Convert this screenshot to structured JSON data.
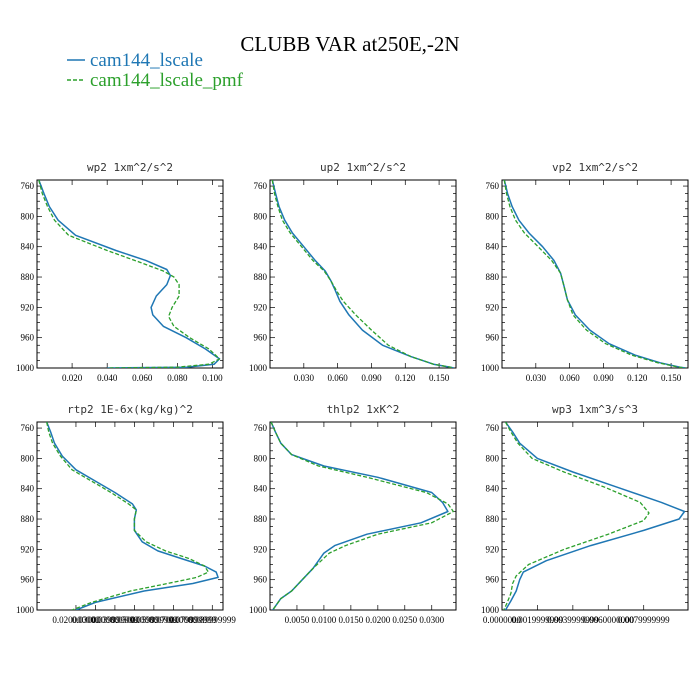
{
  "title": "CLUBB VAR at250E,-2N",
  "legend": [
    {
      "label": "cam144_lscale",
      "color": "#1f77b4",
      "dash": "solid"
    },
    {
      "label": "cam144_lscale_pmf",
      "color": "#2ca02c",
      "dash": "dashed"
    }
  ],
  "chart_data": [
    {
      "type": "line",
      "title": "wp2  1xm^2/s^2",
      "xlim": [
        0.0,
        0.106
      ],
      "ylim": [
        1000,
        752
      ],
      "xticks": [
        0.02,
        0.04,
        0.06,
        0.08,
        0.1
      ],
      "xtick_labels": [
        "0.020",
        "0.040",
        "0.060",
        "0.080",
        "0.100"
      ],
      "yticks": [
        760,
        800,
        840,
        880,
        920,
        960,
        1000
      ],
      "ytick_labels": [
        "760",
        "800",
        "840",
        "880",
        "920",
        "960",
        "1000"
      ],
      "series": [
        {
          "name": "cam144_lscale",
          "x": [
            0.001,
            0.004,
            0.007,
            0.012,
            0.022,
            0.045,
            0.062,
            0.074,
            0.076,
            0.074,
            0.068,
            0.065,
            0.066,
            0.072,
            0.085,
            0.096,
            0.104,
            0.101,
            0.085,
            0.04
          ],
          "y": [
            752,
            770,
            787,
            805,
            825,
            845,
            858,
            870,
            878,
            890,
            905,
            920,
            930,
            945,
            960,
            975,
            988,
            995,
            999,
            1000
          ]
        },
        {
          "name": "cam144_lscale_pmf",
          "x": [
            0.001,
            0.003,
            0.006,
            0.01,
            0.018,
            0.04,
            0.058,
            0.072,
            0.078,
            0.081,
            0.081,
            0.077,
            0.075,
            0.078,
            0.087,
            0.098,
            0.104,
            0.098,
            0.08,
            0.04
          ],
          "y": [
            752,
            770,
            787,
            805,
            825,
            845,
            860,
            872,
            880,
            890,
            905,
            920,
            932,
            945,
            960,
            975,
            988,
            995,
            999,
            1000
          ]
        }
      ]
    },
    {
      "type": "line",
      "title": "up2  1xm^2/s^2",
      "xlim": [
        0.0,
        0.165
      ],
      "ylim": [
        1000,
        752
      ],
      "xticks": [
        0.03,
        0.06,
        0.09,
        0.12,
        0.15
      ],
      "xtick_labels": [
        "0.030",
        "0.060",
        "0.090",
        "0.120",
        "0.150"
      ],
      "yticks": [
        760,
        800,
        840,
        880,
        920,
        960,
        1000
      ],
      "ytick_labels": [
        "760",
        "800",
        "840",
        "880",
        "920",
        "960",
        "1000"
      ],
      "series": [
        {
          "name": "cam144_lscale",
          "x": [
            0.002,
            0.005,
            0.008,
            0.013,
            0.02,
            0.03,
            0.04,
            0.049,
            0.054,
            0.058,
            0.062,
            0.07,
            0.082,
            0.1,
            0.125,
            0.145,
            0.16,
            0.163
          ],
          "y": [
            752,
            770,
            787,
            805,
            822,
            840,
            858,
            872,
            885,
            898,
            912,
            930,
            950,
            970,
            985,
            995,
            999,
            1000
          ]
        },
        {
          "name": "cam144_lscale_pmf",
          "x": [
            0.002,
            0.004,
            0.007,
            0.011,
            0.018,
            0.028,
            0.038,
            0.048,
            0.054,
            0.059,
            0.065,
            0.076,
            0.09,
            0.105,
            0.125,
            0.145,
            0.16,
            0.163
          ],
          "y": [
            752,
            770,
            787,
            805,
            822,
            840,
            858,
            872,
            885,
            898,
            912,
            930,
            950,
            970,
            985,
            995,
            999,
            1000
          ]
        }
      ]
    },
    {
      "type": "line",
      "title": "vp2  1xm^2/s^2",
      "xlim": [
        0.0,
        0.165
      ],
      "ylim": [
        1000,
        752
      ],
      "xticks": [
        0.03,
        0.06,
        0.09,
        0.12,
        0.15
      ],
      "xtick_labels": [
        "0.030",
        "0.060",
        "0.090",
        "0.120",
        "0.150"
      ],
      "yticks": [
        760,
        800,
        840,
        880,
        920,
        960,
        1000
      ],
      "ytick_labels": [
        "760",
        "800",
        "840",
        "880",
        "920",
        "960",
        "1000"
      ],
      "series": [
        {
          "name": "cam144_lscale",
          "x": [
            0.002,
            0.005,
            0.009,
            0.015,
            0.024,
            0.036,
            0.046,
            0.052,
            0.055,
            0.058,
            0.065,
            0.078,
            0.095,
            0.118,
            0.14,
            0.158,
            0.163
          ],
          "y": [
            752,
            770,
            787,
            805,
            822,
            840,
            858,
            875,
            892,
            910,
            930,
            950,
            968,
            983,
            993,
            999,
            1000
          ]
        },
        {
          "name": "cam144_lscale_pmf",
          "x": [
            0.002,
            0.004,
            0.007,
            0.012,
            0.02,
            0.032,
            0.044,
            0.052,
            0.055,
            0.058,
            0.063,
            0.075,
            0.092,
            0.115,
            0.138,
            0.157,
            0.163
          ],
          "y": [
            752,
            770,
            787,
            805,
            822,
            840,
            858,
            875,
            892,
            910,
            930,
            950,
            968,
            983,
            993,
            999,
            1000
          ]
        }
      ]
    },
    {
      "type": "line",
      "title": "rtp2  1E-6x(kg/kg)^2",
      "xlim": [
        0.0,
        0.0955
      ],
      "ylim": [
        1000,
        752
      ],
      "xticks": [
        0.02,
        0.03,
        0.04,
        0.05,
        0.06,
        0.07,
        0.08,
        0.09
      ],
      "xtick_labels": [
        "0.020000000",
        "0.030000000",
        "0.039999999",
        "0.050000000",
        "0.059999999",
        "0.070000000",
        "0.079999999",
        "0.089999999"
      ],
      "yticks": [
        760,
        800,
        840,
        880,
        920,
        960,
        1000
      ],
      "ytick_labels": [
        "760",
        "800",
        "840",
        "880",
        "920",
        "960",
        "1000"
      ],
      "series": [
        {
          "name": "cam144_lscale",
          "x": [
            0.005,
            0.007,
            0.009,
            0.013,
            0.02,
            0.03,
            0.04,
            0.049,
            0.051,
            0.05,
            0.05,
            0.054,
            0.062,
            0.074,
            0.086,
            0.092,
            0.093,
            0.08,
            0.055,
            0.03,
            0.02
          ],
          "y": [
            752,
            765,
            780,
            797,
            815,
            830,
            845,
            860,
            868,
            880,
            895,
            910,
            922,
            932,
            942,
            950,
            957,
            965,
            975,
            990,
            1000
          ]
        },
        {
          "name": "cam144_lscale_pmf",
          "x": [
            0.005,
            0.006,
            0.008,
            0.012,
            0.018,
            0.028,
            0.038,
            0.047,
            0.051,
            0.05,
            0.05,
            0.056,
            0.066,
            0.078,
            0.086,
            0.088,
            0.082,
            0.067,
            0.048,
            0.028,
            0.018
          ],
          "y": [
            752,
            765,
            780,
            797,
            815,
            830,
            845,
            860,
            868,
            880,
            895,
            910,
            922,
            932,
            942,
            950,
            957,
            965,
            975,
            990,
            1000
          ]
        }
      ]
    },
    {
      "type": "line",
      "title": "thlp2  1xK^2",
      "xlim": [
        0.0,
        0.0345
      ],
      "ylim": [
        1000,
        752
      ],
      "xticks": [
        0.005,
        0.01,
        0.015,
        0.02,
        0.025,
        0.03
      ],
      "xtick_labels": [
        "0.0050",
        "0.0100",
        "0.0150",
        "0.0200",
        "0.0250",
        "0.0300"
      ],
      "yticks": [
        760,
        800,
        840,
        880,
        920,
        960,
        1000
      ],
      "ytick_labels": [
        "760",
        "800",
        "840",
        "880",
        "920",
        "960",
        "1000"
      ],
      "series": [
        {
          "name": "cam144_lscale",
          "x": [
            0.0002,
            0.001,
            0.002,
            0.004,
            0.01,
            0.02,
            0.03,
            0.032,
            0.033,
            0.028,
            0.018,
            0.012,
            0.01,
            0.008,
            0.006,
            0.004,
            0.002,
            0.001,
            0.0005
          ],
          "y": [
            752,
            765,
            780,
            795,
            810,
            825,
            845,
            858,
            870,
            885,
            900,
            915,
            925,
            945,
            960,
            975,
            985,
            995,
            1000
          ]
        },
        {
          "name": "cam144_lscale_pmf",
          "x": [
            0.0002,
            0.001,
            0.002,
            0.004,
            0.009,
            0.018,
            0.029,
            0.033,
            0.034,
            0.03,
            0.02,
            0.014,
            0.011,
            0.008,
            0.006,
            0.004,
            0.002,
            0.001,
            0.0005
          ],
          "y": [
            752,
            765,
            780,
            795,
            810,
            825,
            845,
            860,
            870,
            885,
            900,
            915,
            925,
            945,
            960,
            975,
            985,
            995,
            1000
          ]
        }
      ]
    },
    {
      "type": "line",
      "title": "wp3  1xm^3/s^3",
      "xlim": [
        0.0,
        0.0105
      ],
      "ylim": [
        1000,
        752
      ],
      "xticks": [
        0.0,
        0.002,
        0.004,
        0.006,
        0.008
      ],
      "xtick_labels": [
        "0.0000000",
        "0.0019999999",
        "0.0039999999",
        "0.0060000000",
        "0.0079999999"
      ],
      "yticks": [
        760,
        800,
        840,
        880,
        920,
        960,
        1000
      ],
      "ytick_labels": [
        "760",
        "800",
        "840",
        "880",
        "920",
        "960",
        "1000"
      ],
      "series": [
        {
          "name": "cam144_lscale",
          "x": [
            0.0002,
            0.0006,
            0.001,
            0.002,
            0.004,
            0.0065,
            0.009,
            0.0103,
            0.01,
            0.008,
            0.005,
            0.0025,
            0.0012,
            0.001,
            0.0008,
            0.0005,
            0.0002
          ],
          "y": [
            752,
            765,
            780,
            800,
            818,
            838,
            858,
            870,
            880,
            895,
            915,
            935,
            950,
            960,
            975,
            988,
            1000
          ]
        },
        {
          "name": "cam144_lscale_pmf",
          "x": [
            0.0002,
            0.0005,
            0.0009,
            0.0017,
            0.0035,
            0.0058,
            0.0078,
            0.0083,
            0.008,
            0.006,
            0.0035,
            0.0015,
            0.0008,
            0.0006,
            0.0005,
            0.0003,
            0.0001
          ],
          "y": [
            752,
            765,
            780,
            800,
            818,
            838,
            858,
            872,
            882,
            900,
            920,
            940,
            955,
            965,
            978,
            990,
            1000
          ]
        }
      ]
    }
  ]
}
